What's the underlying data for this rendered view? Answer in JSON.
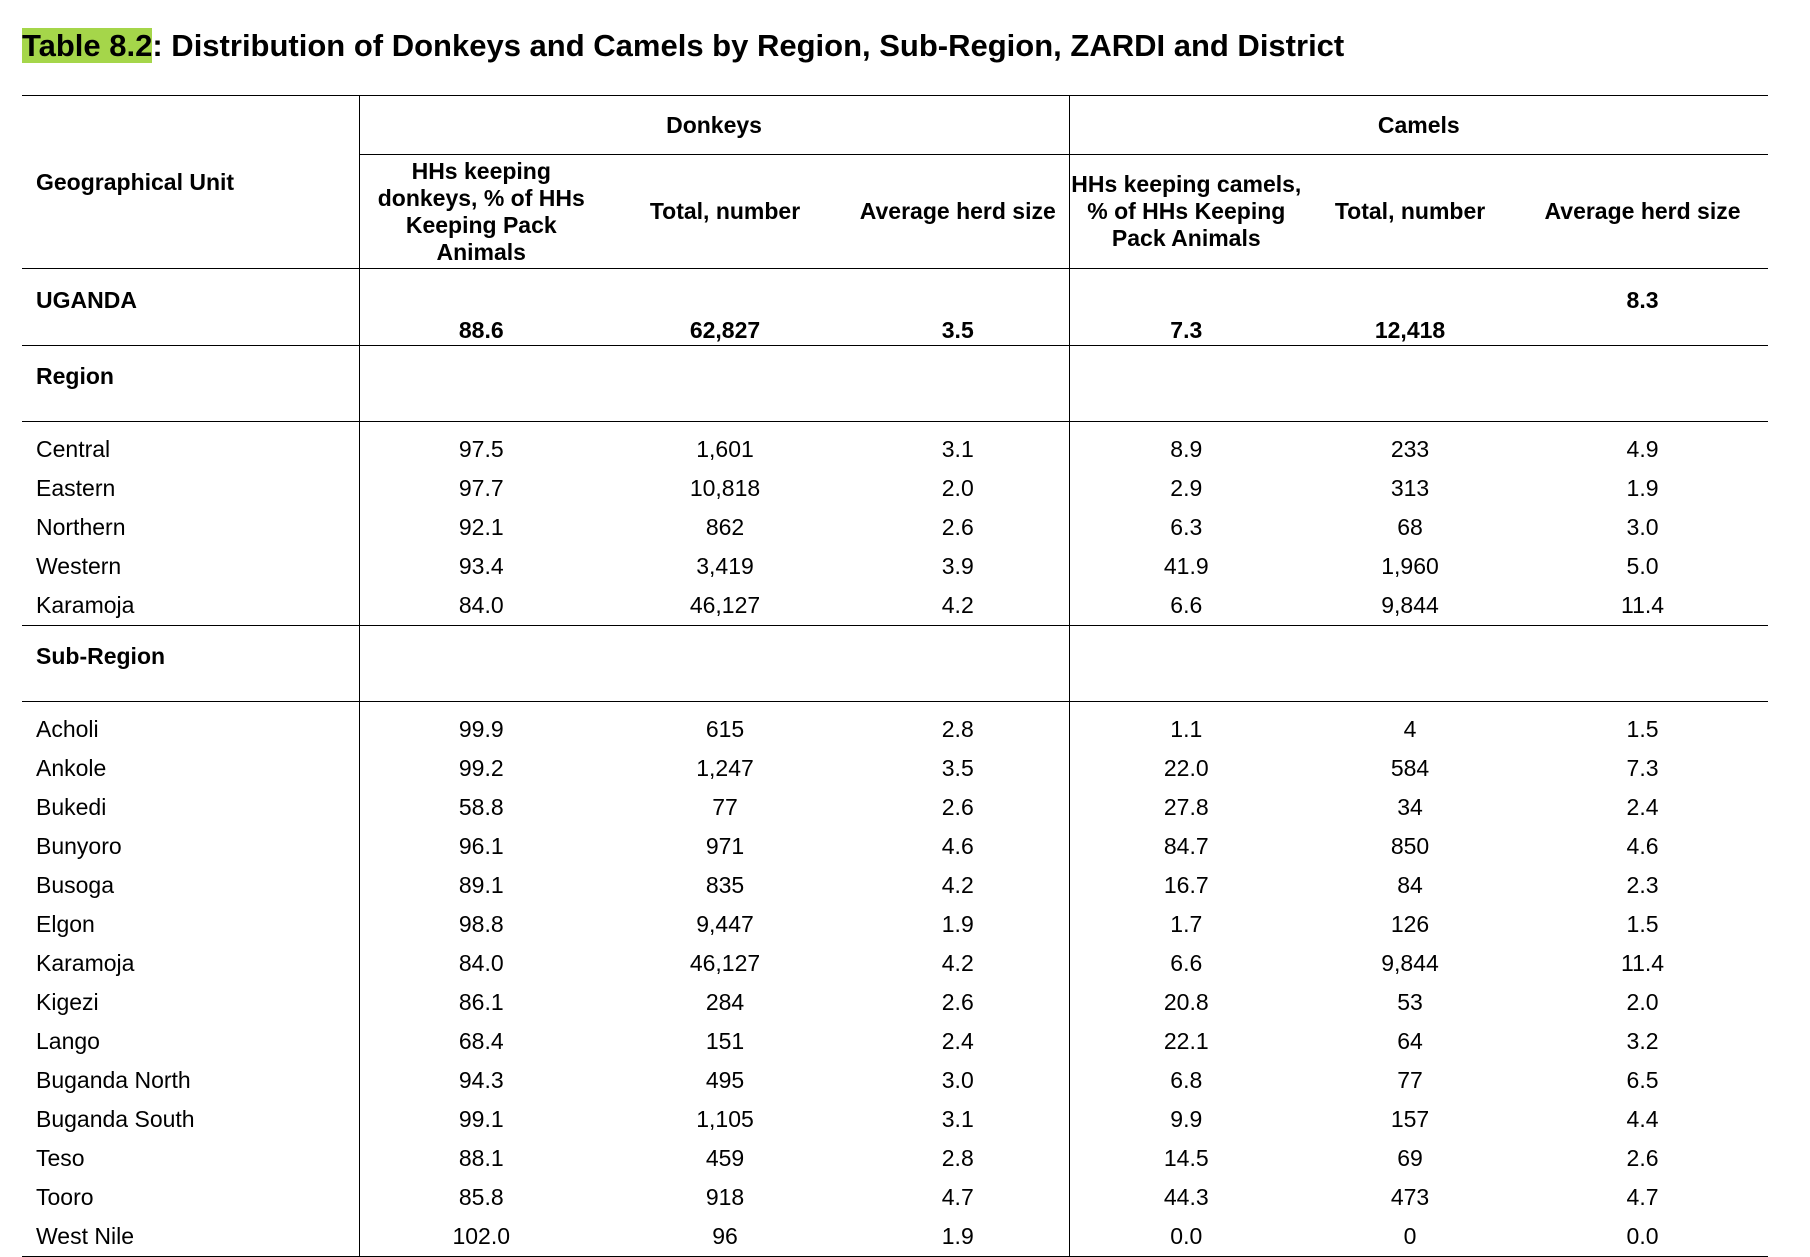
{
  "title": {
    "label": "Table 8.2",
    "text": ": Distribution of Donkeys and Camels by Region, Sub-Region, ZARDI and District"
  },
  "columns": {
    "geo": "Geographical Unit",
    "donkeys_group": "Donkeys",
    "camels_group": "Camels",
    "donkeys_pct": "HHs keeping donkeys, % of HHs Keeping Pack Animals",
    "donkeys_total": "Total, number",
    "donkeys_avg": "Average herd size",
    "camels_pct": "HHs keeping camels, % of HHs Keeping Pack Animals",
    "camels_total": "Total, number",
    "camels_avg": "Average herd size"
  },
  "uganda": {
    "name": "UGANDA",
    "d_pct": "88.6",
    "d_total": "62,827",
    "d_avg": "3.5",
    "c_pct": "7.3",
    "c_total": "12,418",
    "c_avg": "8.3"
  },
  "sections": [
    {
      "label": "Region",
      "rows": [
        {
          "name": "Central",
          "d_pct": "97.5",
          "d_total": "1,601",
          "d_avg": "3.1",
          "c_pct": "8.9",
          "c_total": "233",
          "c_avg": "4.9"
        },
        {
          "name": "Eastern",
          "d_pct": "97.7",
          "d_total": "10,818",
          "d_avg": "2.0",
          "c_pct": "2.9",
          "c_total": "313",
          "c_avg": "1.9"
        },
        {
          "name": "Northern",
          "d_pct": "92.1",
          "d_total": "862",
          "d_avg": "2.6",
          "c_pct": "6.3",
          "c_total": "68",
          "c_avg": "3.0"
        },
        {
          "name": "Western",
          "d_pct": "93.4",
          "d_total": "3,419",
          "d_avg": "3.9",
          "c_pct": "41.9",
          "c_total": "1,960",
          "c_avg": "5.0"
        },
        {
          "name": "Karamoja",
          "d_pct": "84.0",
          "d_total": "46,127",
          "d_avg": "4.2",
          "c_pct": "6.6",
          "c_total": "9,844",
          "c_avg": "11.4"
        }
      ]
    },
    {
      "label": "Sub-Region",
      "rows": [
        {
          "name": "Acholi",
          "d_pct": "99.9",
          "d_total": "615",
          "d_avg": "2.8",
          "c_pct": "1.1",
          "c_total": "4",
          "c_avg": "1.5"
        },
        {
          "name": "Ankole",
          "d_pct": "99.2",
          "d_total": "1,247",
          "d_avg": "3.5",
          "c_pct": "22.0",
          "c_total": "584",
          "c_avg": "7.3"
        },
        {
          "name": "Bukedi",
          "d_pct": "58.8",
          "d_total": "77",
          "d_avg": "2.6",
          "c_pct": "27.8",
          "c_total": "34",
          "c_avg": "2.4"
        },
        {
          "name": "Bunyoro",
          "d_pct": "96.1",
          "d_total": "971",
          "d_avg": "4.6",
          "c_pct": "84.7",
          "c_total": "850",
          "c_avg": "4.6"
        },
        {
          "name": "Busoga",
          "d_pct": "89.1",
          "d_total": "835",
          "d_avg": "4.2",
          "c_pct": "16.7",
          "c_total": "84",
          "c_avg": "2.3"
        },
        {
          "name": "Elgon",
          "d_pct": "98.8",
          "d_total": "9,447",
          "d_avg": "1.9",
          "c_pct": "1.7",
          "c_total": "126",
          "c_avg": "1.5"
        },
        {
          "name": "Karamoja",
          "d_pct": "84.0",
          "d_total": "46,127",
          "d_avg": "4.2",
          "c_pct": "6.6",
          "c_total": "9,844",
          "c_avg": "11.4"
        },
        {
          "name": "Kigezi",
          "d_pct": "86.1",
          "d_total": "284",
          "d_avg": "2.6",
          "c_pct": "20.8",
          "c_total": "53",
          "c_avg": "2.0"
        },
        {
          "name": "Lango",
          "d_pct": "68.4",
          "d_total": "151",
          "d_avg": "2.4",
          "c_pct": "22.1",
          "c_total": "64",
          "c_avg": "3.2"
        },
        {
          "name": "Buganda North",
          "d_pct": "94.3",
          "d_total": "495",
          "d_avg": "3.0",
          "c_pct": "6.8",
          "c_total": "77",
          "c_avg": "6.5"
        },
        {
          "name": "Buganda South",
          "d_pct": "99.1",
          "d_total": "1,105",
          "d_avg": "3.1",
          "c_pct": "9.9",
          "c_total": "157",
          "c_avg": "4.4"
        },
        {
          "name": "Teso",
          "d_pct": "88.1",
          "d_total": "459",
          "d_avg": "2.8",
          "c_pct": "14.5",
          "c_total": "69",
          "c_avg": "2.6"
        },
        {
          "name": "Tooro",
          "d_pct": "85.8",
          "d_total": "918",
          "d_avg": "4.7",
          "c_pct": "44.3",
          "c_total": "473",
          "c_avg": "4.7"
        },
        {
          "name": "West Nile",
          "d_pct": "102.0",
          "d_total": "96",
          "d_avg": "1.9",
          "c_pct": "0.0",
          "c_total": "0",
          "c_avg": "0.0"
        }
      ]
    }
  ]
}
